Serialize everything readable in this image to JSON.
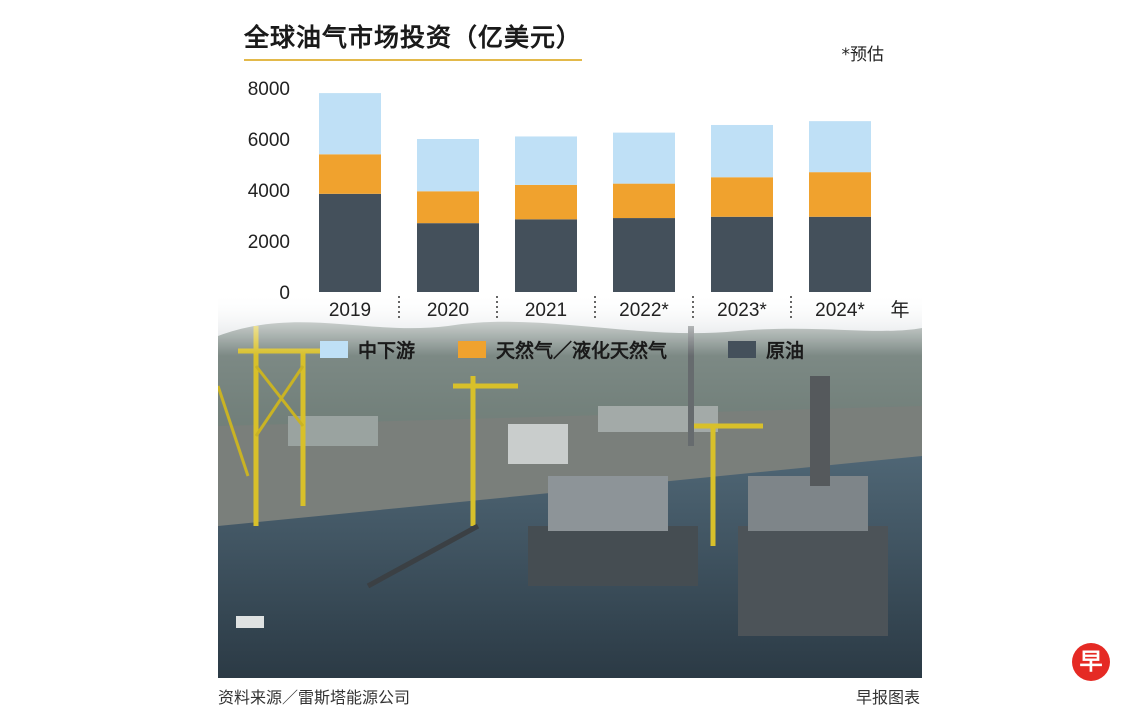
{
  "header": {
    "title": "全球油气市场投资（亿美元）",
    "estimate_note": "*预估"
  },
  "footer": {
    "source": "资料来源／雷斯塔能源公司",
    "credit": "早报图表",
    "logo_char": "早"
  },
  "chart_data": {
    "type": "bar",
    "stacked": true,
    "categories": [
      "2019",
      "2020",
      "2021",
      "2022*",
      "2023*",
      "2024*"
    ],
    "x_unit": "年",
    "ylim": [
      0,
      8000
    ],
    "yticks": [
      0,
      2000,
      4000,
      6000,
      8000
    ],
    "series": [
      {
        "name": "原油",
        "color": "#44505b",
        "values": [
          3850,
          2700,
          2850,
          2900,
          2950,
          2950
        ]
      },
      {
        "name": "天然气／液化天然气",
        "color": "#f0a22e",
        "values": [
          1550,
          1250,
          1350,
          1350,
          1550,
          1750
        ]
      },
      {
        "name": "中下游",
        "color": "#bfe0f6",
        "values": [
          2400,
          2050,
          1900,
          2000,
          2050,
          2000
        ]
      }
    ],
    "legend_order": [
      "中下游",
      "天然气／液化天然气",
      "原油"
    ],
    "legend_position": "bottom",
    "grid": false
  }
}
